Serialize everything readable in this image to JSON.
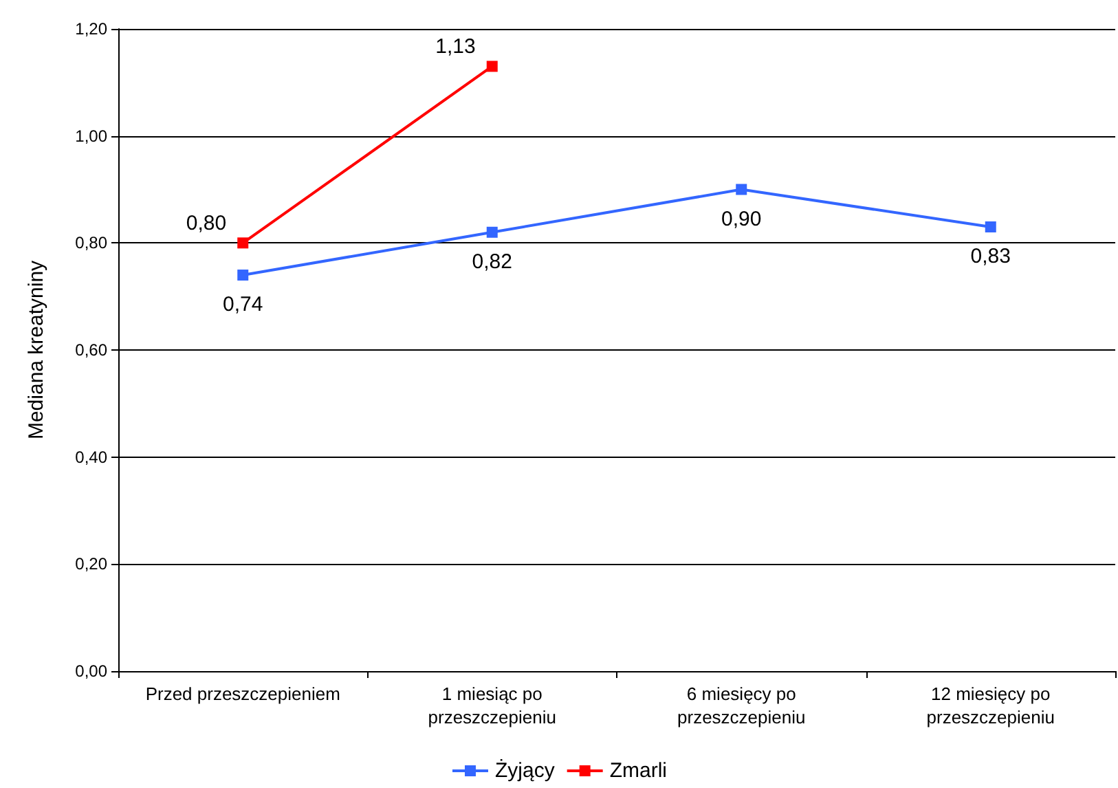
{
  "chart_data": {
    "type": "line",
    "ylabel": "Mediana kreatyniny",
    "categories": [
      "Przed przeszczepieniem",
      "1 miesiąc po\nprzeszczepieniu",
      "6 miesięcy po\nprzeszczepieniu",
      "12 miesięcy po\nprzeszczepieniu"
    ],
    "series": [
      {
        "name": "Żyjący",
        "color": "#3366ff",
        "values": [
          0.74,
          0.82,
          0.9,
          0.83
        ],
        "value_labels": [
          "0,74",
          "0,82",
          "0,90",
          "0,83"
        ]
      },
      {
        "name": "Zmarli",
        "color": "#ff0000",
        "values": [
          0.8,
          1.13,
          null,
          null
        ],
        "value_labels": [
          "0,80",
          "1,13",
          null,
          null
        ]
      }
    ],
    "ylim": [
      0,
      1.2
    ],
    "yticks": [
      {
        "value": 0,
        "label": "0,00"
      },
      {
        "value": 0.2,
        "label": "0,20"
      },
      {
        "value": 0.4,
        "label": "0,40"
      },
      {
        "value": 0.6,
        "label": "0,60"
      },
      {
        "value": 0.8,
        "label": "0,80"
      },
      {
        "value": 1.0,
        "label": "1,00"
      },
      {
        "value": 1.2,
        "label": "1,20"
      }
    ],
    "grid": "y",
    "legend": "bottom",
    "marker": "square",
    "line_style": "solid"
  }
}
